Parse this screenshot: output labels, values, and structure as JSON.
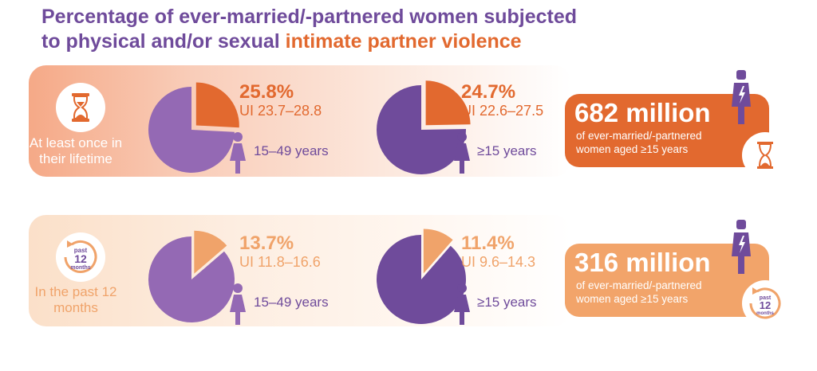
{
  "title": {
    "line1": "Percentage of ever-married/-partnered women subjected",
    "line2_prefix": "to physical and/or sexual ",
    "line2_highlight": "intimate partner violence"
  },
  "colors": {
    "purple": "#6f4b9b",
    "light_purple": "#9469b4",
    "orange": "#e2692f",
    "light_orange": "#f0a36a"
  },
  "rows": [
    {
      "label": "At least once in their lifetime",
      "icon": "hourglass-icon",
      "pies": [
        {
          "percent": "25.8%",
          "ui": "UI 23.7–28.8",
          "age": "15–49 years"
        },
        {
          "percent": "24.7%",
          "ui": "UI 22.6–27.5",
          "age": "≥15 years"
        }
      ],
      "total": {
        "number": "682 million",
        "desc": "of ever-married/-partnered women aged ≥15 years"
      }
    },
    {
      "label": "In the past 12 months",
      "icon": "past-12-months-icon",
      "icon_text": {
        "top": "past",
        "mid": "12",
        "bottom": "months"
      },
      "pies": [
        {
          "percent": "13.7%",
          "ui": "UI 11.8–16.6",
          "age": "15–49 years"
        },
        {
          "percent": "11.4%",
          "ui": "UI 9.6–14.3",
          "age": "≥15 years"
        }
      ],
      "total": {
        "number": "316 million",
        "desc": "of ever-married/-partnered women aged ≥15 years"
      }
    }
  ],
  "chart_data": {
    "type": "pie",
    "series": [
      {
        "name": "At least once in their lifetime",
        "categories": [
          "15–49 years",
          "≥15 years"
        ],
        "values": [
          25.8,
          24.7
        ]
      },
      {
        "name": "In the past 12 months",
        "categories": [
          "15–49 years",
          "≥15 years"
        ],
        "values": [
          13.7,
          11.4
        ]
      }
    ]
  }
}
